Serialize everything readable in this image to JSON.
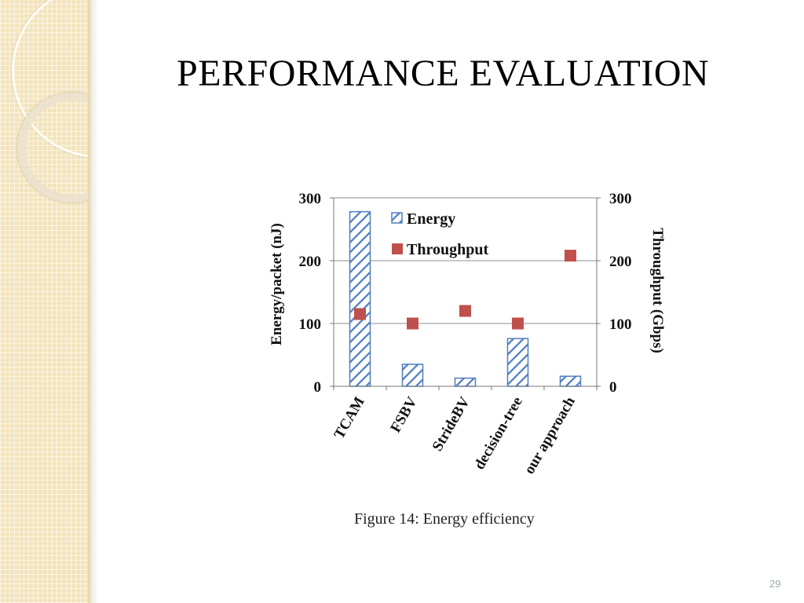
{
  "slide": {
    "title": "PERFORMANCE EVALUATION",
    "caption": "Figure 14:  Energy efficiency",
    "page_number": "29"
  },
  "colors": {
    "energy_bar": "#4f7ec0",
    "throughput_marker": "#c0504d",
    "gridline": "#8c8c8c",
    "sidebar": "#f3e4bd"
  },
  "chart_data": {
    "type": "bar",
    "categories": [
      "TCAM",
      "FSBV",
      "StrideBV",
      "decision-tree",
      "our approach"
    ],
    "series": [
      {
        "name": "Energy",
        "kind": "bar",
        "axis": "left",
        "values": [
          278,
          35,
          13,
          76,
          16
        ]
      },
      {
        "name": "Throughput",
        "kind": "scatter",
        "axis": "right",
        "values": [
          115,
          100,
          120,
          100,
          208
        ]
      }
    ],
    "ylabel": "Energy/packet (nJ)",
    "ylabel_right": "Throughput (Gbps)",
    "ylim": [
      0,
      300
    ],
    "ylim_right": [
      0,
      300
    ],
    "yticks": [
      0,
      100,
      200,
      300
    ],
    "yticks_right": [
      0,
      100,
      200,
      300
    ],
    "grid": true,
    "legend_position": "top-left"
  }
}
